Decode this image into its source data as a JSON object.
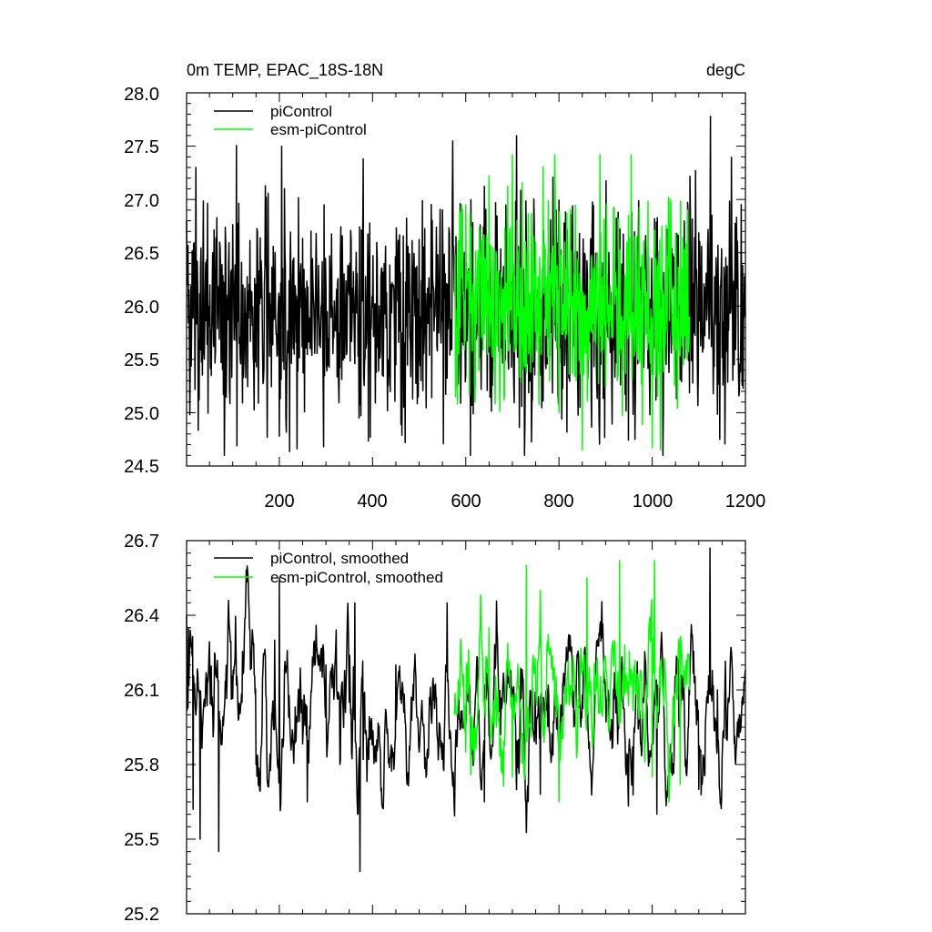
{
  "chart_data": [
    {
      "type": "line",
      "title": "0m TEMP, EPAC_18S-18N",
      "units": "degC",
      "xlabel": "",
      "ylabel": "",
      "xlim": [
        1,
        1200
      ],
      "ylim": [
        24.5,
        28.0
      ],
      "x_ticks": [
        200,
        400,
        600,
        800,
        1000,
        1200
      ],
      "y_ticks": [
        24.5,
        25.0,
        25.5,
        26.0,
        26.5,
        27.0,
        27.5,
        28.0
      ],
      "y_tick_labels": [
        "24.5",
        "25.0",
        "25.5",
        "26.0",
        "26.5",
        "27.0",
        "27.5",
        "28.0"
      ],
      "legend_position": "top-left",
      "grid": false,
      "series": [
        {
          "name": "piControl",
          "color": "#000000",
          "x_range": [
            1,
            1200
          ],
          "mean": 25.96,
          "min": 24.6,
          "max": 27.78,
          "anchors": [
            [
              1,
              26.8
            ],
            [
              3,
              26.2
            ],
            [
              8,
              24.98
            ],
            [
              82,
              24.6
            ],
            [
              205,
              27.5
            ],
            [
              295,
              24.68
            ],
            [
              380,
              27.38
            ],
            [
              470,
              24.72
            ],
            [
              572,
              27.55
            ],
            [
              600,
              25.35
            ],
            [
              995,
              24.98
            ],
            [
              1125,
              27.78
            ],
            [
              1145,
              24.75
            ],
            [
              1200,
              25.9
            ]
          ]
        },
        {
          "name": "esm-piControl",
          "color": "#00ff00",
          "x_range": [
            576,
            1080
          ],
          "mean": 26.05,
          "min": 24.65,
          "max": 27.42,
          "anchors": [
            [
              576,
              26.1
            ],
            [
              600,
              26.95
            ],
            [
              620,
              25.1
            ],
            [
              650,
              27.22
            ],
            [
              700,
              27.42
            ],
            [
              800,
              25.0
            ],
            [
              955,
              27.42
            ],
            [
              1000,
              24.67
            ],
            [
              1018,
              24.65
            ],
            [
              1040,
              26.95
            ],
            [
              1080,
              25.9
            ]
          ]
        }
      ]
    },
    {
      "type": "line",
      "title": "",
      "xlabel": "",
      "ylabel": "",
      "xlim": [
        1,
        1200
      ],
      "ylim": [
        25.2,
        26.7
      ],
      "x_ticks": [
        200,
        400,
        600,
        800,
        1000,
        1200
      ],
      "y_ticks": [
        25.2,
        25.5,
        25.8,
        26.1,
        26.4,
        26.7
      ],
      "y_tick_labels": [
        "25.2",
        "25.5",
        "25.8",
        "26.1",
        "26.4",
        "26.7"
      ],
      "legend_position": "top-left",
      "grid": false,
      "series": [
        {
          "name": "piControl, smoothed",
          "color": "#000000",
          "x_range": [
            1,
            1200
          ],
          "mean": 26.0,
          "min": 25.37,
          "max": 26.67,
          "anchors": [
            [
              1,
              26.4
            ],
            [
              5,
              26.35
            ],
            [
              15,
              25.62
            ],
            [
              30,
              25.5
            ],
            [
              70,
              25.45
            ],
            [
              120,
              26.05
            ],
            [
              150,
              25.8
            ],
            [
              190,
              26.3
            ],
            [
              200,
              26.55
            ],
            [
              260,
              25.65
            ],
            [
              300,
              26.2
            ],
            [
              330,
              25.8
            ],
            [
              362,
              26.45
            ],
            [
              368,
              25.6
            ],
            [
              373,
              25.37
            ],
            [
              380,
              25.82
            ],
            [
              450,
              26.2
            ],
            [
              500,
              25.85
            ],
            [
              560,
              26.45
            ],
            [
              640,
              25.65
            ],
            [
              700,
              26.05
            ],
            [
              760,
              25.68
            ],
            [
              1010,
              25.6
            ],
            [
              1100,
              25.7
            ],
            [
              1124,
              26.67
            ],
            [
              1140,
              26.1
            ],
            [
              1200,
              26.18
            ]
          ]
        },
        {
          "name": "esm-piControl, smoothed",
          "color": "#00ff00",
          "x_range": [
            576,
            1080
          ],
          "mean": 26.05,
          "min": 25.65,
          "max": 26.65,
          "anchors": [
            [
              576,
              26.0
            ],
            [
              600,
              25.85
            ],
            [
              650,
              26.35
            ],
            [
              700,
              25.75
            ],
            [
              730,
              26.6
            ],
            [
              760,
              26.5
            ],
            [
              800,
              25.65
            ],
            [
              860,
              26.55
            ],
            [
              930,
              26.62
            ],
            [
              1000,
              25.75
            ],
            [
              1005,
              26.62
            ],
            [
              1060,
              25.72
            ],
            [
              1080,
              26.1
            ]
          ]
        }
      ]
    }
  ]
}
